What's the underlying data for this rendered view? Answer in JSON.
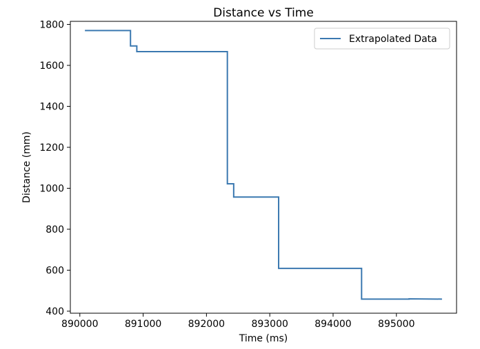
{
  "chart_data": {
    "type": "line",
    "title": "Distance vs Time",
    "xlabel": "Time (ms)",
    "ylabel": "Distance (mm)",
    "xlim": [
      889850,
      895950
    ],
    "ylim": [
      390,
      1815
    ],
    "x_ticks": [
      890000,
      891000,
      892000,
      893000,
      894000,
      895000
    ],
    "x_tick_labels": [
      "890000",
      "891000",
      "892000",
      "893000",
      "894000",
      "895000"
    ],
    "y_ticks": [
      400,
      600,
      800,
      1000,
      1200,
      1400,
      1600,
      1800
    ],
    "y_tick_labels": [
      "400",
      "600",
      "800",
      "1000",
      "1200",
      "1400",
      "1600",
      "1800"
    ],
    "grid": false,
    "legend_position": "top-right",
    "colors": {
      "series": "#3a78b0"
    },
    "series": [
      {
        "name": "Extrapolated Data",
        "x": [
          890080,
          890800,
          890800,
          890900,
          890900,
          892330,
          892330,
          892430,
          892430,
          893140,
          893140,
          894450,
          894450,
          895200,
          895200,
          895720
        ],
        "y": [
          1770,
          1770,
          1695,
          1695,
          1667,
          1667,
          1022,
          1022,
          957,
          957,
          609,
          609,
          459,
          459,
          460,
          459
        ]
      }
    ]
  }
}
